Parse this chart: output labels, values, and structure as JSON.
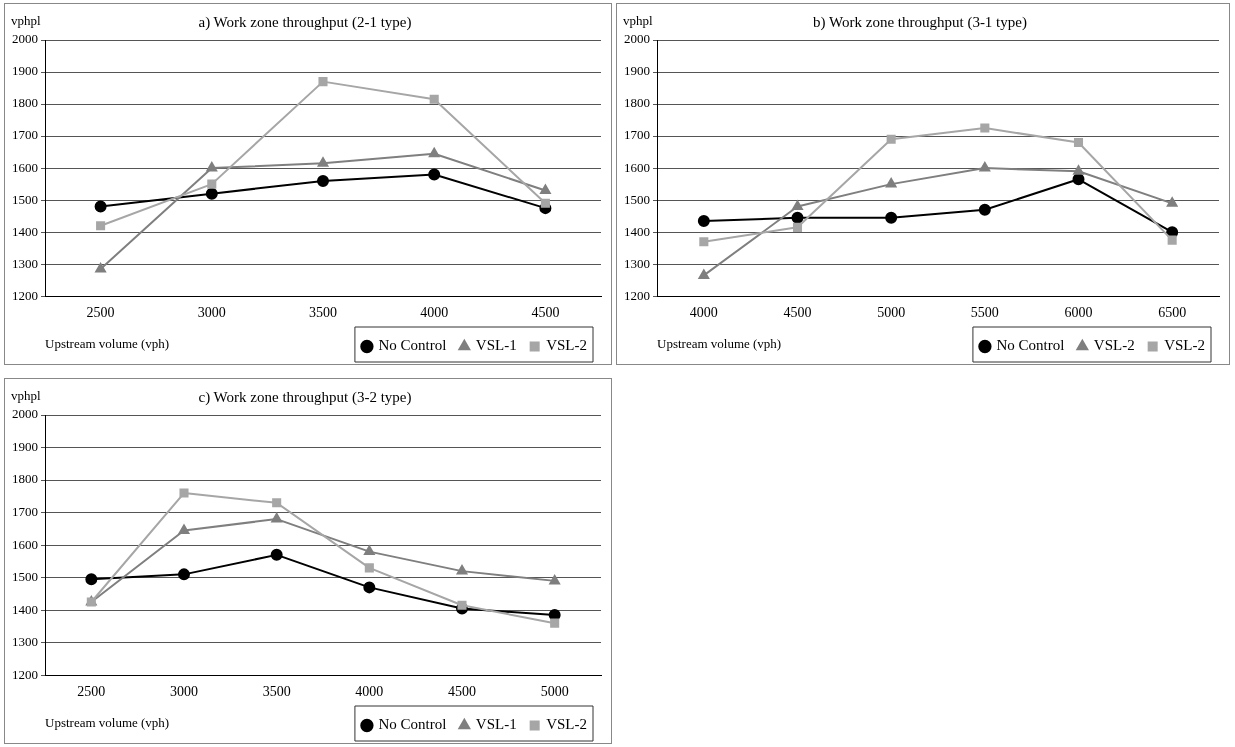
{
  "chart_data": [
    {
      "type": "line",
      "title": "a) Work zone throughput (2-1 type)",
      "ylabel": "vphpl",
      "xlabel": "Upstream volume (vph)",
      "categories": [
        "2500",
        "3000",
        "3500",
        "4000",
        "4500"
      ],
      "ylim": [
        1200,
        2000
      ],
      "yticks": [
        1200,
        1300,
        1400,
        1500,
        1600,
        1700,
        1800,
        1900,
        2000
      ],
      "grid": "y",
      "legend": "bottom right",
      "series": [
        {
          "name": "No Control",
          "color": "#000000",
          "marker": "circle",
          "values": [
            1480,
            1520,
            1560,
            1580,
            1475
          ]
        },
        {
          "name": "VSL-1",
          "color": "#7f7f7f",
          "marker": "triangle",
          "values": [
            1285,
            1600,
            1615,
            1645,
            1530
          ]
        },
        {
          "name": "VSL-2",
          "color": "#a6a6a6",
          "marker": "square",
          "values": [
            1420,
            1550,
            1870,
            1815,
            1490
          ]
        }
      ]
    },
    {
      "type": "line",
      "title": "b) Work zone throughput (3-1 type)",
      "ylabel": "vphpl",
      "xlabel": "Upstream volume (vph)",
      "categories": [
        "4000",
        "4500",
        "5000",
        "5500",
        "6000",
        "6500"
      ],
      "ylim": [
        1200,
        2000
      ],
      "yticks": [
        1200,
        1300,
        1400,
        1500,
        1600,
        1700,
        1800,
        1900,
        2000
      ],
      "grid": "y",
      "legend": "bottom right",
      "series": [
        {
          "name": "No Control",
          "color": "#000000",
          "marker": "circle",
          "values": [
            1435,
            1445,
            1445,
            1470,
            1565,
            1400
          ]
        },
        {
          "name": "VSL-2",
          "color": "#7f7f7f",
          "marker": "triangle",
          "values": [
            1265,
            1480,
            1550,
            1600,
            1590,
            1490
          ]
        },
        {
          "name": "VSL-2",
          "color": "#a6a6a6",
          "marker": "square",
          "values": [
            1370,
            1415,
            1690,
            1725,
            1680,
            1375
          ]
        }
      ]
    },
    {
      "type": "line",
      "title": "c) Work zone throughput (3-2 type)",
      "ylabel": "vphpl",
      "xlabel": "Upstream volume (vph)",
      "categories": [
        "2500",
        "3000",
        "3500",
        "4000",
        "4500",
        "5000"
      ],
      "ylim": [
        1200,
        2000
      ],
      "yticks": [
        1200,
        1300,
        1400,
        1500,
        1600,
        1700,
        1800,
        1900,
        2000
      ],
      "grid": "y",
      "legend": "bottom right",
      "series": [
        {
          "name": "No Control",
          "color": "#000000",
          "marker": "circle",
          "values": [
            1495,
            1510,
            1570,
            1470,
            1405,
            1385
          ]
        },
        {
          "name": "VSL-1",
          "color": "#7f7f7f",
          "marker": "triangle",
          "values": [
            1425,
            1645,
            1680,
            1580,
            1520,
            1490
          ]
        },
        {
          "name": "VSL-2",
          "color": "#a6a6a6",
          "marker": "square",
          "values": [
            1425,
            1760,
            1730,
            1530,
            1415,
            1360
          ]
        }
      ]
    }
  ]
}
